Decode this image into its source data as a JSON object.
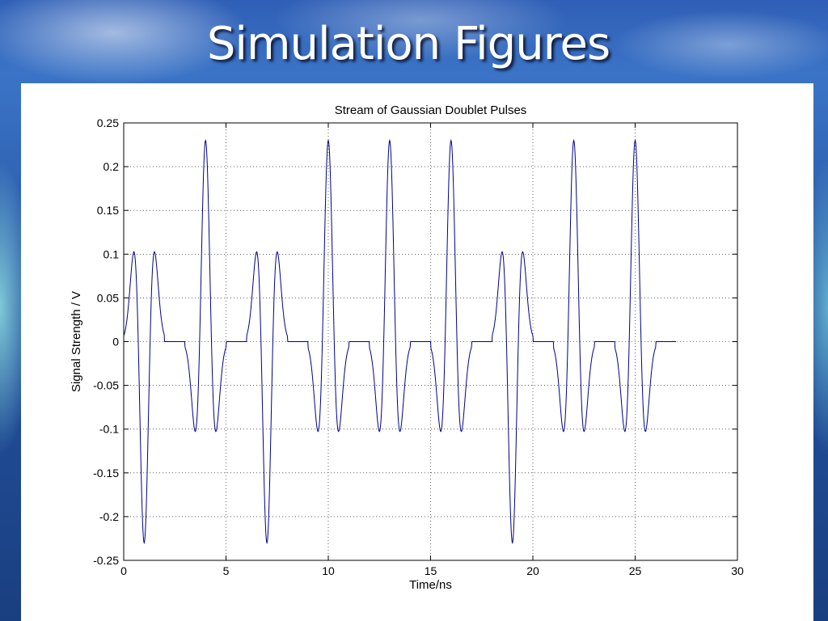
{
  "slide": {
    "title": "Simulation Figures"
  },
  "chart_data": {
    "type": "line",
    "title": "Stream of Gaussian Doublet Pulses",
    "xlabel": "Time/ns",
    "ylabel": "Signal Strength / V",
    "xlim": [
      0,
      30
    ],
    "ylim": [
      -0.25,
      0.25
    ],
    "xticks": [
      0,
      5,
      10,
      15,
      20,
      25,
      30
    ],
    "yticks": [
      0.25,
      0.2,
      0.15,
      0.1,
      0.05,
      0,
      -0.05,
      -0.1,
      -0.15,
      -0.2,
      -0.25
    ],
    "xtick_labels": [
      "0",
      "5",
      "10",
      "15",
      "20",
      "25",
      "30"
    ],
    "ytick_labels": [
      "0.25",
      "0.2",
      "0.15",
      "0.1",
      "0.05",
      "0",
      "-0.05",
      "-0.1",
      "-0.15",
      "-0.2",
      "-0.25"
    ],
    "grid": true,
    "series": [
      {
        "color": "#00008b",
        "pulses": [
          {
            "center": 1,
            "polarity": -1
          },
          {
            "center": 4,
            "polarity": 1
          },
          {
            "center": 7,
            "polarity": -1
          },
          {
            "center": 10,
            "polarity": 1
          },
          {
            "center": 13,
            "polarity": 1
          },
          {
            "center": 16,
            "polarity": 1
          },
          {
            "center": 19,
            "polarity": -1
          },
          {
            "center": 22,
            "polarity": 1
          },
          {
            "center": 25,
            "polarity": 1
          }
        ],
        "pulse_peak": 0.23,
        "pulse_side_lobe": 0.103,
        "pulse_half_width": 1,
        "x_end": 27
      }
    ]
  }
}
